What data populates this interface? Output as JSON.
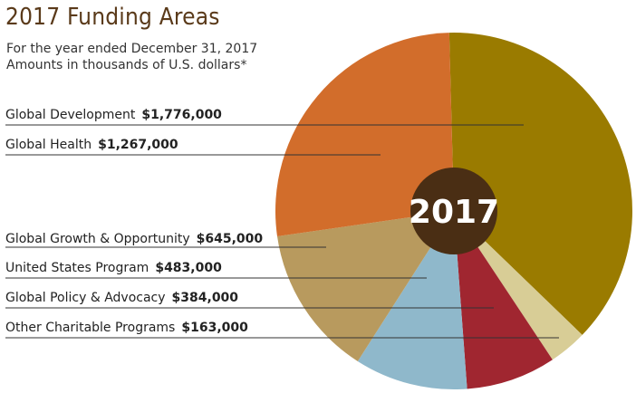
{
  "header": {
    "title": "2017 Funding Areas",
    "subtitle_line1": "For the year ended December 31, 2017",
    "subtitle_line2": "Amounts in thousands of U.S. dollars*"
  },
  "chart_data": {
    "type": "pie",
    "title": "2017 Funding Areas",
    "center_label": "2017",
    "slices": [
      {
        "label": "Global Development",
        "value_text": "$1,776,000",
        "value": 1776000,
        "color": "#9a7b00"
      },
      {
        "label": "Other Charitable Programs",
        "value_text": "$163,000",
        "value": 163000,
        "color": "#d8cd96"
      },
      {
        "label": "Global Policy & Advocacy",
        "value_text": "$384,000",
        "value": 384000,
        "color": "#a02630"
      },
      {
        "label": "United States Program",
        "value_text": "$483,000",
        "value": 483000,
        "color": "#8fb8cb"
      },
      {
        "label": "Global Growth & Opportunity",
        "value_text": "$645,000",
        "value": 645000,
        "color": "#b89a5e"
      },
      {
        "label": "Global Health",
        "value_text": "$1,267,000",
        "value": 1267000,
        "color": "#d26d2b"
      }
    ],
    "legend_order": [
      "Global Development",
      "Global Health",
      "Global Growth & Opportunity",
      "United States Program",
      "Global Policy & Advocacy",
      "Other Charitable Programs"
    ],
    "center_color": "#4a2e14"
  }
}
